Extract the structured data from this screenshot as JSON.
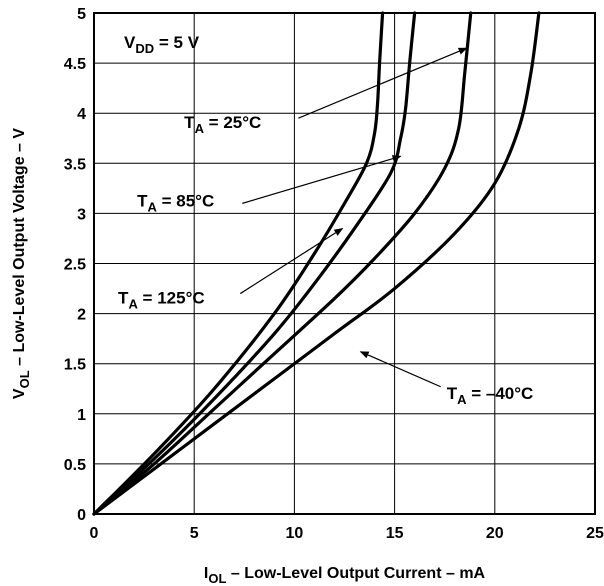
{
  "chart_data": {
    "type": "line",
    "title": "",
    "xlabel": {
      "main": "I",
      "sub": "OL",
      "rest": " – Low-Level Output Current – mA"
    },
    "ylabel": {
      "main": "V",
      "sub": "OL",
      "rest": " – Low-Level Output Voltage – V"
    },
    "xlim": [
      0,
      25
    ],
    "ylim": [
      0,
      5
    ],
    "x_ticks": [
      "0",
      "5",
      "10",
      "15",
      "20",
      "25"
    ],
    "y_ticks": [
      "0",
      "0.5",
      "1",
      "1.5",
      "2",
      "2.5",
      "3",
      "3.5",
      "4",
      "4.5",
      "5"
    ],
    "grid": true,
    "condition": {
      "main": "V",
      "sub": "DD",
      "rest": " = 5 V"
    },
    "series": [
      {
        "name": "T_A = 25°C",
        "x": [
          0,
          3,
          6,
          9,
          11,
          12.5,
          13.6,
          14.0,
          14.15,
          14.25,
          14.4
        ],
        "y": [
          0,
          0.6,
          1.25,
          2.0,
          2.6,
          3.1,
          3.5,
          3.8,
          4.1,
          4.5,
          5.0
        ]
      },
      {
        "name": "T_A = 85°C",
        "x": [
          0,
          3,
          6,
          9,
          11,
          13,
          14.8,
          15.3,
          15.55,
          15.75,
          16.0
        ],
        "y": [
          0,
          0.55,
          1.15,
          1.8,
          2.3,
          2.85,
          3.4,
          3.75,
          4.05,
          4.5,
          5.0
        ]
      },
      {
        "name": "T_A = 125°C",
        "x": [
          0,
          3,
          6,
          9,
          12,
          14,
          16,
          17.5,
          18.2,
          18.5,
          18.8
        ],
        "y": [
          0,
          0.5,
          1.05,
          1.6,
          2.15,
          2.55,
          3.0,
          3.45,
          3.85,
          4.4,
          5.0
        ]
      },
      {
        "name": "T_A = –40°C",
        "x": [
          0,
          3,
          6,
          9,
          12,
          15,
          18,
          20,
          21.2,
          21.8,
          22.2
        ],
        "y": [
          0,
          0.45,
          0.9,
          1.35,
          1.8,
          2.25,
          2.8,
          3.3,
          3.85,
          4.4,
          5.0
        ]
      }
    ],
    "annotations": [
      {
        "label": {
          "main": "T",
          "sub": "A",
          "rest": " = 25°C"
        },
        "text_at": [
          4.5,
          3.85
        ],
        "arrow_from": [
          10.2,
          3.95
        ],
        "arrow_to": [
          18.6,
          4.65
        ]
      },
      {
        "label": {
          "main": "T",
          "sub": "A",
          "rest": " = 85°C"
        },
        "text_at": [
          2.15,
          3.07
        ],
        "arrow_from": [
          7.4,
          3.1
        ],
        "arrow_to": [
          15.3,
          3.57
        ]
      },
      {
        "label": {
          "main": "T",
          "sub": "A",
          "rest": " = 125°C"
        },
        "text_at": [
          1.2,
          2.1
        ],
        "arrow_from": [
          7.3,
          2.2
        ],
        "arrow_to": [
          12.4,
          2.85
        ]
      },
      {
        "label": {
          "main": "T",
          "sub": "A",
          "rest": " = –40°C"
        },
        "text_at": [
          17.6,
          1.15
        ],
        "arrow_from": [
          17.3,
          1.27
        ],
        "arrow_to": [
          13.3,
          1.62
        ]
      }
    ]
  }
}
